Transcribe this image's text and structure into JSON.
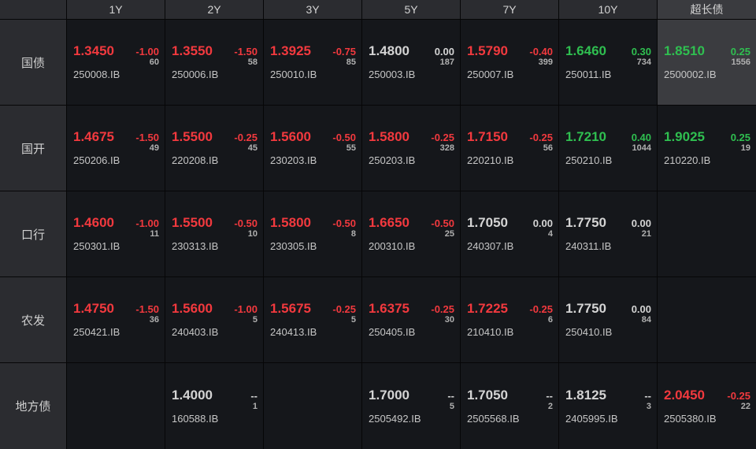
{
  "colors": {
    "down": "#f2393e",
    "up": "#2fbf50",
    "flat": "#d4d4d4",
    "selected": "#3b3c40"
  },
  "tenors": [
    {
      "label": "1Y"
    },
    {
      "label": "2Y"
    },
    {
      "label": "3Y"
    },
    {
      "label": "5Y"
    },
    {
      "label": "7Y"
    },
    {
      "label": "10Y"
    },
    {
      "label": "超长债",
      "active": true
    }
  ],
  "rows": [
    {
      "label": "国债",
      "cells": [
        {
          "yield": "1.3450",
          "change": "-1.00",
          "count": "60",
          "code": "250008.IB"
        },
        {
          "yield": "1.3550",
          "change": "-1.50",
          "count": "58",
          "code": "250006.IB"
        },
        {
          "yield": "1.3925",
          "change": "-0.75",
          "count": "85",
          "code": "250010.IB"
        },
        {
          "yield": "1.4800",
          "change": "0.00",
          "count": "187",
          "code": "250003.IB"
        },
        {
          "yield": "1.5790",
          "change": "-0.40",
          "count": "399",
          "code": "250007.IB"
        },
        {
          "yield": "1.6460",
          "change": "0.30",
          "count": "734",
          "code": "250011.IB"
        },
        {
          "yield": "1.8510",
          "change": "0.25",
          "count": "1556",
          "code": "2500002.IB",
          "selected": true
        }
      ]
    },
    {
      "label": "国开",
      "cells": [
        {
          "yield": "1.4675",
          "change": "-1.50",
          "count": "49",
          "code": "250206.IB"
        },
        {
          "yield": "1.5500",
          "change": "-0.25",
          "count": "45",
          "code": "220208.IB"
        },
        {
          "yield": "1.5600",
          "change": "-0.50",
          "count": "55",
          "code": "230203.IB"
        },
        {
          "yield": "1.5800",
          "change": "-0.25",
          "count": "328",
          "code": "250203.IB"
        },
        {
          "yield": "1.7150",
          "change": "-0.25",
          "count": "56",
          "code": "220210.IB"
        },
        {
          "yield": "1.7210",
          "change": "0.40",
          "count": "1044",
          "code": "250210.IB"
        },
        {
          "yield": "1.9025",
          "change": "0.25",
          "count": "19",
          "code": "210220.IB"
        }
      ]
    },
    {
      "label": "口行",
      "cells": [
        {
          "yield": "1.4600",
          "change": "-1.00",
          "count": "11",
          "code": "250301.IB"
        },
        {
          "yield": "1.5500",
          "change": "-0.50",
          "count": "10",
          "code": "230313.IB"
        },
        {
          "yield": "1.5800",
          "change": "-0.50",
          "count": "8",
          "code": "230305.IB"
        },
        {
          "yield": "1.6650",
          "change": "-0.50",
          "count": "25",
          "code": "200310.IB"
        },
        {
          "yield": "1.7050",
          "change": "0.00",
          "count": "4",
          "code": "240307.IB"
        },
        {
          "yield": "1.7750",
          "change": "0.00",
          "count": "21",
          "code": "240311.IB"
        },
        null
      ]
    },
    {
      "label": "农发",
      "cells": [
        {
          "yield": "1.4750",
          "change": "-1.50",
          "count": "36",
          "code": "250421.IB"
        },
        {
          "yield": "1.5600",
          "change": "-1.00",
          "count": "5",
          "code": "240403.IB"
        },
        {
          "yield": "1.5675",
          "change": "-0.25",
          "count": "5",
          "code": "240413.IB"
        },
        {
          "yield": "1.6375",
          "change": "-0.25",
          "count": "30",
          "code": "250405.IB"
        },
        {
          "yield": "1.7225",
          "change": "-0.25",
          "count": "6",
          "code": "210410.IB"
        },
        {
          "yield": "1.7750",
          "change": "0.00",
          "count": "84",
          "code": "250410.IB"
        },
        null
      ]
    },
    {
      "label": "地方债",
      "cells": [
        null,
        {
          "yield": "1.4000",
          "change": "--",
          "count": "1",
          "code": "160588.IB"
        },
        null,
        {
          "yield": "1.7000",
          "change": "--",
          "count": "5",
          "code": "2505492.IB"
        },
        {
          "yield": "1.7050",
          "change": "--",
          "count": "2",
          "code": "2505568.IB"
        },
        {
          "yield": "1.8125",
          "change": "--",
          "count": "3",
          "code": "2405995.IB"
        },
        {
          "yield": "2.0450",
          "change": "-0.25",
          "count": "22",
          "code": "2505380.IB"
        }
      ]
    }
  ]
}
